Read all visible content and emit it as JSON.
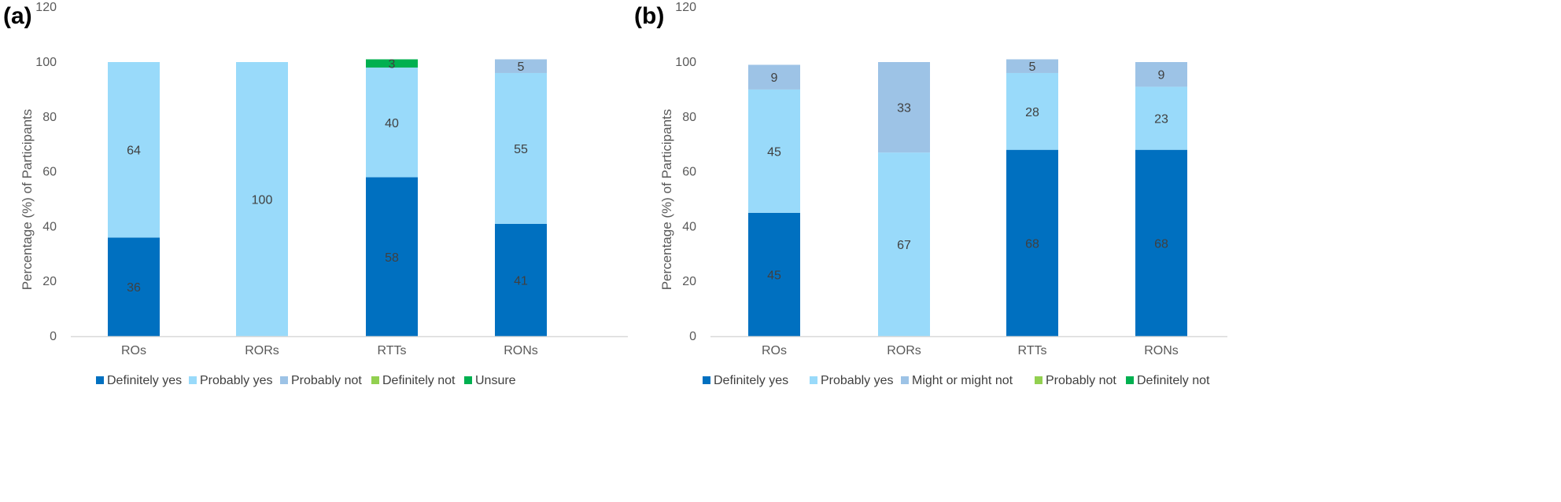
{
  "chart_data": [
    {
      "panel_label": "(a)",
      "type": "bar",
      "stacked": true,
      "categories": [
        "ROs",
        "RORs",
        "RTTs",
        "RONs"
      ],
      "ylabel": "Percentage (%) of Participants",
      "xlabel": "",
      "ylim": [
        0,
        120
      ],
      "yticks": [
        0,
        20,
        40,
        60,
        80,
        100,
        120
      ],
      "grid": false,
      "legend_position": "bottom",
      "series": [
        {
          "name": "Definitely yes",
          "color": "#0070C0",
          "values": [
            36,
            0,
            58,
            41
          ],
          "labels": [
            "36",
            "",
            "58",
            "41"
          ]
        },
        {
          "name": "Probably yes",
          "color": "#99DAFA",
          "values": [
            64,
            100,
            40,
            55
          ],
          "labels": [
            "64",
            "100",
            "40",
            "55"
          ]
        },
        {
          "name": "Probably not",
          "color": "#9DC3E6",
          "values": [
            0,
            0,
            0,
            5
          ],
          "labels": [
            "",
            "",
            "",
            "5"
          ]
        },
        {
          "name": "Definitely not",
          "color": "#92D050",
          "values": [
            0,
            0,
            0,
            0
          ],
          "labels": [
            "",
            "",
            "",
            ""
          ]
        },
        {
          "name": "Unsure",
          "color": "#00B050",
          "values": [
            0,
            0,
            3,
            0
          ],
          "labels": [
            "",
            "",
            "3",
            ""
          ]
        }
      ]
    },
    {
      "panel_label": "(b)",
      "type": "bar",
      "stacked": true,
      "categories": [
        "ROs",
        "RORs",
        "RTTs",
        "RONs"
      ],
      "ylabel": "Percentage (%) of Participants",
      "xlabel": "",
      "ylim": [
        0,
        120
      ],
      "yticks": [
        0,
        20,
        40,
        60,
        80,
        100,
        120
      ],
      "grid": false,
      "legend_position": "bottom",
      "series": [
        {
          "name": "Definitely yes",
          "color": "#0070C0",
          "values": [
            45,
            0,
            68,
            68
          ],
          "labels": [
            "45",
            "",
            "68",
            "68"
          ]
        },
        {
          "name": "Probably yes",
          "color": "#99DAFA",
          "values": [
            45,
            67,
            28,
            23
          ],
          "labels": [
            "45",
            "67",
            "28",
            "23"
          ]
        },
        {
          "name": "Might or might not",
          "color": "#9DC3E6",
          "values": [
            9,
            33,
            5,
            9
          ],
          "labels": [
            "9",
            "33",
            "5",
            "9"
          ]
        },
        {
          "name": "Probably not",
          "color": "#92D050",
          "values": [
            0,
            0,
            0,
            0
          ],
          "labels": [
            "",
            "",
            "",
            ""
          ]
        },
        {
          "name": "Definitely not",
          "color": "#00B050",
          "values": [
            0,
            0,
            0,
            0
          ],
          "labels": [
            "",
            "",
            "",
            ""
          ]
        }
      ]
    }
  ]
}
